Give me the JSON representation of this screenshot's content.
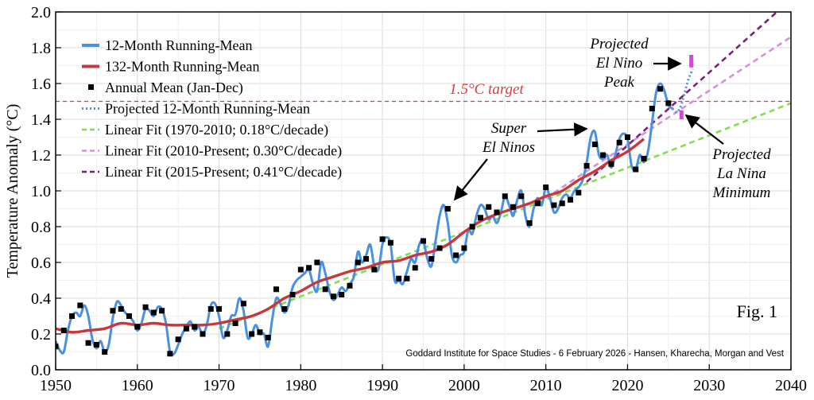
{
  "chart_data": {
    "type": "line",
    "title": "",
    "xlabel": "",
    "ylabel": "Temperature Anomaly (°C)",
    "xlim": [
      1950,
      2040
    ],
    "ylim": [
      0.0,
      2.0
    ],
    "xticks": [
      1950,
      1960,
      1970,
      1980,
      1990,
      2000,
      2010,
      2020,
      2030,
      2040
    ],
    "yticks": [
      0.0,
      0.2,
      0.4,
      0.6,
      0.8,
      1.0,
      1.2,
      1.4,
      1.6,
      1.8,
      2.0
    ],
    "ytick_labels": [
      "0.0",
      "0.2",
      "0.4",
      "0.6",
      "0.8",
      "1.0",
      "1.2",
      "1.4",
      "1.6",
      "1.8",
      "2.0"
    ],
    "grid": true,
    "legend_position": "top-left",
    "legend": [
      {
        "label": "12-Month Running-Mean",
        "style": "line",
        "color": "#4a90e2"
      },
      {
        "label": "132-Month Running-Mean",
        "style": "line",
        "color": "#c8373a"
      },
      {
        "label": "Annual Mean (Jan-Dec)",
        "style": "square",
        "color": "#000000"
      },
      {
        "label": "Projected 12-Month Running-Mean",
        "style": "dotted",
        "color": "#4a90e2"
      },
      {
        "label": "Linear Fit (1970-2010; 0.18°C/decade)",
        "style": "dashed",
        "color": "#7ee04a"
      },
      {
        "label": "Linear Fit (2010-Present; 0.30°C/decade)",
        "style": "dashed",
        "color": "#d98ce0"
      },
      {
        "label": "Linear Fit (2015-Present; 0.41°C/decade)",
        "style": "dashed",
        "color": "#7a1f7a"
      }
    ],
    "series": [
      {
        "name": "12-Month Running-Mean",
        "color": "#4a90e2",
        "x": [
          1950.0,
          1950.5,
          1951.0,
          1951.5,
          1952.0,
          1952.5,
          1953.0,
          1953.5,
          1954.0,
          1954.5,
          1955.0,
          1955.5,
          1956.0,
          1956.5,
          1957.0,
          1957.5,
          1958.0,
          1958.5,
          1959.0,
          1959.5,
          1960.0,
          1960.5,
          1961.0,
          1961.5,
          1962.0,
          1962.5,
          1963.0,
          1963.5,
          1964.0,
          1964.5,
          1965.0,
          1965.5,
          1966.0,
          1966.5,
          1967.0,
          1967.5,
          1968.0,
          1968.5,
          1969.0,
          1969.5,
          1970.0,
          1970.5,
          1971.0,
          1971.5,
          1972.0,
          1972.5,
          1973.0,
          1973.5,
          1974.0,
          1974.5,
          1975.0,
          1975.5,
          1976.0,
          1976.5,
          1977.0,
          1977.5,
          1978.0,
          1978.5,
          1979.0,
          1979.5,
          1980.0,
          1980.5,
          1981.0,
          1981.5,
          1982.0,
          1982.5,
          1983.0,
          1983.5,
          1984.0,
          1984.5,
          1985.0,
          1985.5,
          1986.0,
          1986.5,
          1987.0,
          1987.5,
          1988.0,
          1988.5,
          1989.0,
          1989.5,
          1990.0,
          1990.5,
          1991.0,
          1991.5,
          1992.0,
          1992.5,
          1993.0,
          1993.5,
          1994.0,
          1994.5,
          1995.0,
          1995.5,
          1996.0,
          1996.5,
          1997.0,
          1997.5,
          1998.0,
          1998.5,
          1999.0,
          1999.5,
          2000.0,
          2000.5,
          2001.0,
          2001.5,
          2002.0,
          2002.5,
          2003.0,
          2003.5,
          2004.0,
          2004.5,
          2005.0,
          2005.5,
          2006.0,
          2006.5,
          2007.0,
          2007.5,
          2008.0,
          2008.5,
          2009.0,
          2009.5,
          2010.0,
          2010.5,
          2011.0,
          2011.5,
          2012.0,
          2012.5,
          2013.0,
          2013.5,
          2014.0,
          2014.5,
          2015.0,
          2015.5,
          2016.0,
          2016.5,
          2017.0,
          2017.5,
          2018.0,
          2018.5,
          2019.0,
          2019.5,
          2020.0,
          2020.5,
          2021.0,
          2021.5,
          2022.0,
          2022.5,
          2023.0,
          2023.5,
          2024.0,
          2024.5,
          2025.0,
          2025.5
        ],
        "y": [
          0.16,
          0.11,
          0.1,
          0.22,
          0.3,
          0.32,
          0.3,
          0.36,
          0.3,
          0.17,
          0.12,
          0.16,
          0.1,
          0.14,
          0.29,
          0.38,
          0.36,
          0.32,
          0.3,
          0.27,
          0.22,
          0.26,
          0.34,
          0.33,
          0.3,
          0.35,
          0.34,
          0.26,
          0.1,
          0.09,
          0.14,
          0.2,
          0.24,
          0.27,
          0.22,
          0.24,
          0.2,
          0.25,
          0.36,
          0.37,
          0.3,
          0.18,
          0.22,
          0.3,
          0.31,
          0.4,
          0.33,
          0.18,
          0.2,
          0.25,
          0.2,
          0.2,
          0.13,
          0.28,
          0.4,
          0.37,
          0.32,
          0.36,
          0.46,
          0.5,
          0.52,
          0.54,
          0.56,
          0.48,
          0.44,
          0.6,
          0.54,
          0.44,
          0.39,
          0.42,
          0.46,
          0.44,
          0.48,
          0.52,
          0.66,
          0.6,
          0.64,
          0.7,
          0.58,
          0.56,
          0.7,
          0.74,
          0.7,
          0.5,
          0.5,
          0.48,
          0.55,
          0.62,
          0.6,
          0.7,
          0.72,
          0.62,
          0.58,
          0.72,
          0.86,
          0.92,
          0.82,
          0.64,
          0.6,
          0.64,
          0.66,
          0.78,
          0.76,
          0.86,
          0.92,
          0.9,
          0.84,
          0.86,
          0.82,
          0.88,
          0.97,
          0.92,
          0.86,
          0.95,
          1.0,
          0.86,
          0.8,
          0.9,
          0.96,
          0.92,
          1.02,
          0.96,
          0.88,
          0.9,
          0.96,
          0.98,
          0.96,
          1.0,
          1.02,
          1.06,
          1.16,
          1.3,
          1.33,
          1.2,
          1.18,
          1.2,
          1.13,
          1.2,
          1.29,
          1.32,
          1.29,
          1.14,
          1.12,
          1.2,
          1.16,
          1.22,
          1.38,
          1.55,
          1.6,
          1.56,
          1.48,
          1.46
        ]
      },
      {
        "name": "132-Month Running-Mean",
        "color": "#c8373a",
        "x": [
          1950,
          1952,
          1954,
          1956,
          1958,
          1960,
          1962,
          1964,
          1966,
          1968,
          1970,
          1972,
          1974,
          1976,
          1978,
          1980,
          1982,
          1984,
          1986,
          1988,
          1990,
          1992,
          1994,
          1996,
          1998,
          2000,
          2002,
          2004,
          2006,
          2008,
          2010,
          2012,
          2014,
          2016,
          2018,
          2020,
          2022
        ],
        "y": [
          0.23,
          0.21,
          0.22,
          0.23,
          0.26,
          0.25,
          0.26,
          0.25,
          0.25,
          0.25,
          0.26,
          0.28,
          0.3,
          0.34,
          0.4,
          0.44,
          0.49,
          0.52,
          0.55,
          0.57,
          0.6,
          0.61,
          0.64,
          0.66,
          0.7,
          0.77,
          0.83,
          0.87,
          0.9,
          0.93,
          0.97,
          1.0,
          1.06,
          1.11,
          1.17,
          1.22,
          1.29
        ]
      },
      {
        "name": "Annual Mean (Jan-Dec)",
        "color": "#000000",
        "x": [
          1950,
          1951,
          1952,
          1953,
          1954,
          1955,
          1956,
          1957,
          1958,
          1959,
          1960,
          1961,
          1962,
          1963,
          1964,
          1965,
          1966,
          1967,
          1968,
          1969,
          1970,
          1971,
          1972,
          1973,
          1974,
          1975,
          1976,
          1977,
          1978,
          1979,
          1980,
          1981,
          1982,
          1983,
          1984,
          1985,
          1986,
          1987,
          1988,
          1989,
          1990,
          1991,
          1992,
          1993,
          1994,
          1995,
          1996,
          1997,
          1998,
          1999,
          2000,
          2001,
          2002,
          2003,
          2004,
          2005,
          2006,
          2007,
          2008,
          2009,
          2010,
          2011,
          2012,
          2013,
          2014,
          2015,
          2016,
          2017,
          2018,
          2019,
          2020,
          2021,
          2022,
          2023,
          2024,
          2025
        ],
        "y": [
          0.13,
          0.22,
          0.3,
          0.36,
          0.15,
          0.14,
          0.1,
          0.33,
          0.34,
          0.3,
          0.24,
          0.35,
          0.32,
          0.33,
          0.09,
          0.17,
          0.23,
          0.24,
          0.2,
          0.34,
          0.34,
          0.2,
          0.26,
          0.37,
          0.2,
          0.21,
          0.18,
          0.45,
          0.34,
          0.42,
          0.56,
          0.57,
          0.6,
          0.45,
          0.41,
          0.42,
          0.47,
          0.6,
          0.62,
          0.56,
          0.73,
          0.71,
          0.51,
          0.51,
          0.57,
          0.72,
          0.62,
          0.68,
          0.9,
          0.64,
          0.68,
          0.8,
          0.85,
          0.91,
          0.88,
          0.97,
          0.91,
          0.97,
          0.82,
          0.93,
          1.02,
          0.92,
          0.93,
          0.95,
          0.99,
          1.14,
          1.26,
          1.2,
          1.15,
          1.27,
          1.3,
          1.12,
          1.18,
          1.46,
          1.57,
          1.49
        ]
      },
      {
        "name": "Projected 12-Month Running-Mean",
        "color": "#4a90e2",
        "x": [
          2025.5,
          2026.0,
          2026.5,
          2027.0,
          2027.5,
          2028.0
        ],
        "y": [
          1.46,
          1.44,
          1.47,
          1.55,
          1.63,
          1.68
        ]
      }
    ],
    "fit_lines": [
      {
        "name": "Linear Fit (1970-2010; 0.18°C/decade)",
        "color": "#7ee04a",
        "x": [
          1970,
          2040
        ],
        "y": [
          0.23,
          1.49
        ]
      },
      {
        "name": "Linear Fit (2010-Present; 0.30°C/decade)",
        "color": "#d98ce0",
        "x": [
          2010,
          2040
        ],
        "y": [
          0.96,
          1.86
        ]
      },
      {
        "name": "Linear Fit (2015-Present; 0.41°C/decade)",
        "color": "#7a1f7a",
        "x": [
          2015,
          2040
        ],
        "y": [
          1.05,
          2.07
        ]
      }
    ],
    "target": {
      "label": "1.5°C target",
      "y": 1.5,
      "color": "#e03a3a"
    },
    "markers": [
      {
        "name": "el-nino-peak-marker",
        "x": 2027.8,
        "y": [
          1.69,
          1.76
        ],
        "color": "#e040e0"
      },
      {
        "name": "la-nina-minimum-marker",
        "x": 2026.6,
        "y": [
          1.4,
          1.45
        ],
        "color": "#e040e0"
      }
    ],
    "annotations": [
      {
        "name": "annotation-super-el-ninos",
        "lines": [
          "Super",
          "El Ninos"
        ]
      },
      {
        "name": "annotation-projected-el-nino-peak",
        "lines": [
          "Projected",
          "El Nino",
          "Peak"
        ]
      },
      {
        "name": "annotation-projected-la-nina-minimum",
        "lines": [
          "Projected",
          "La Nina",
          "Minimum"
        ]
      }
    ],
    "figure_label": "Fig. 1",
    "credit": "Goddard Institute for Space Studies - 6 February 2026 - Hansen, Kharecha, Morgan and Vest"
  }
}
